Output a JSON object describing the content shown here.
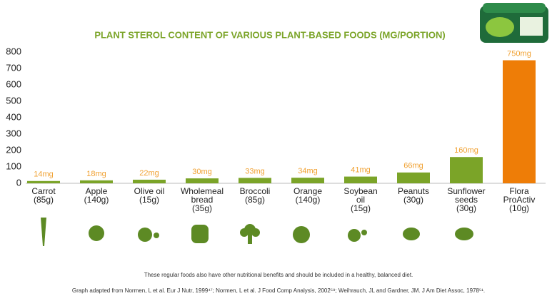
{
  "chart_data": {
    "type": "bar",
    "title": "PLANT STEROL CONTENT OF VARIOUS PLANT-BASED FOODS (MG/PORTION)",
    "categories": [
      "Carrot\n(85g)",
      "Apple\n(140g)",
      "Olive oil\n(15g)",
      "Wholemeal\nbread\n(35g)",
      "Broccoli\n(85g)",
      "Orange\n(140g)",
      "Soybean\noil\n(15g)",
      "Peanuts\n(30g)",
      "Sunflower\nseeds\n(30g)",
      "Flora\nProActiv\n(10g)"
    ],
    "values": [
      14,
      18,
      22,
      30,
      33,
      34,
      41,
      66,
      160,
      750
    ],
    "value_labels": [
      "14mg",
      "18mg",
      "22mg",
      "30mg",
      "33mg",
      "34mg",
      "41mg",
      "66mg",
      "160mg",
      "750mg"
    ],
    "colors": [
      "#7ba428",
      "#7ba428",
      "#7ba428",
      "#7ba428",
      "#7ba428",
      "#7ba428",
      "#7ba428",
      "#7ba428",
      "#7ba428",
      "#ee7d07"
    ],
    "ylim": [
      0,
      800
    ],
    "yticks": [
      0,
      100,
      200,
      300,
      400,
      500,
      600,
      700,
      800
    ],
    "notes": [
      "These regular foods also have other nutritional benefits and should be included in a healthy, balanced diet.",
      "Graph adapted from Normen, L et al. Eur J Nutr, 1999⁴⁷; Normen, L et al. J Food Comp Analysis, 2002⁵⁸; Weihrauch, JL and Gardner, JM. J Am Diet Assoc, 1978⁵¹."
    ]
  }
}
